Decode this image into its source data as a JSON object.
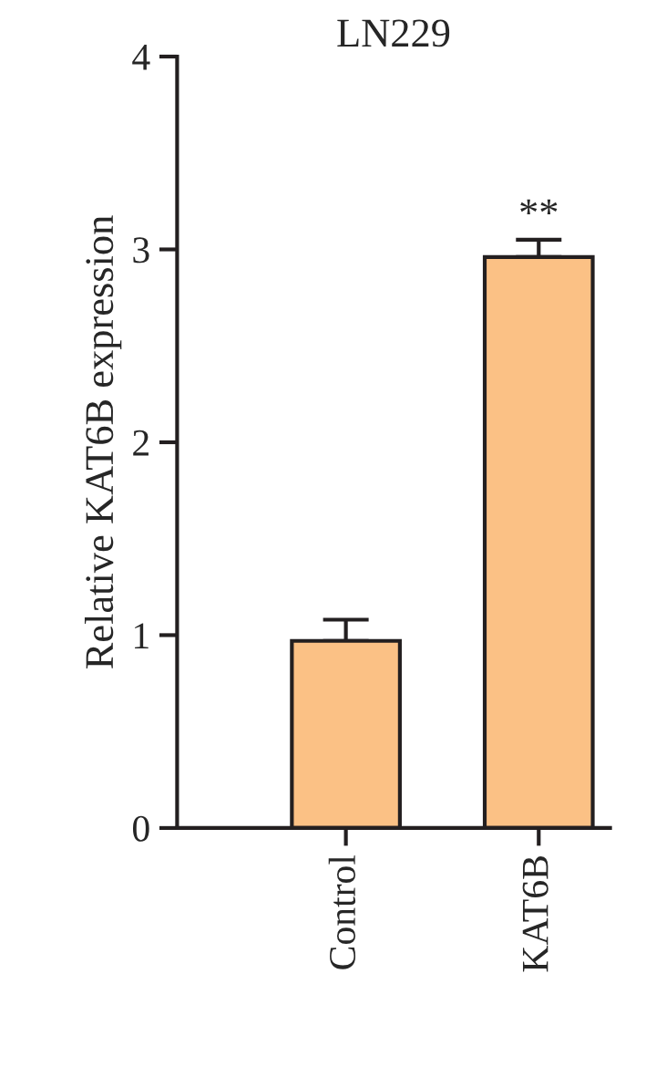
{
  "chart_data": {
    "type": "bar",
    "title": "LN229",
    "ylabel": "Relative KAT6B expression",
    "categories": [
      "Control",
      "KAT6B"
    ],
    "values": [
      0.97,
      2.96
    ],
    "errors": [
      [
        0.97,
        1.08
      ],
      [
        2.96,
        3.05
      ]
    ],
    "color": "#fbc185",
    "ylim": [
      0,
      4
    ],
    "yticks": [
      0,
      1,
      2,
      3,
      4
    ],
    "grid": false,
    "annotations": [
      {
        "text": "**",
        "x": "KAT6B",
        "y": 3.05
      }
    ]
  }
}
